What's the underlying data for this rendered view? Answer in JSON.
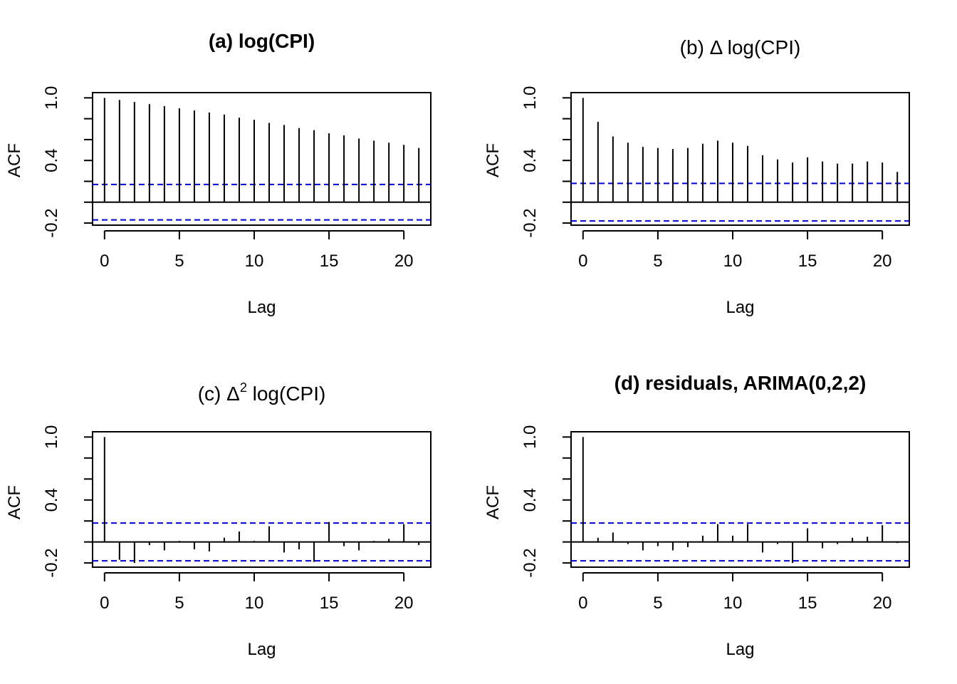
{
  "chart_data": [
    {
      "type": "acf",
      "title": "(a) log(CPI)",
      "title_bold": true,
      "xlabel": "Lag",
      "ylabel": "ACF",
      "xlim": [
        -0.8,
        21.8
      ],
      "ylim": [
        -0.22,
        1.05
      ],
      "xticks": [
        0,
        5,
        10,
        15,
        20
      ],
      "yticks": [
        -0.2,
        0.4,
        1.0
      ],
      "yticks_minor": [
        -0.2,
        0.0,
        0.2,
        0.4,
        0.6,
        0.8,
        1.0
      ],
      "ci": 0.17,
      "ci_color": "#0000cc",
      "lags": [
        0,
        1,
        2,
        3,
        4,
        5,
        6,
        7,
        8,
        9,
        10,
        11,
        12,
        13,
        14,
        15,
        16,
        17,
        18,
        19,
        20,
        21
      ],
      "values": [
        1.0,
        0.98,
        0.96,
        0.94,
        0.92,
        0.9,
        0.88,
        0.86,
        0.84,
        0.81,
        0.79,
        0.76,
        0.74,
        0.71,
        0.69,
        0.66,
        0.64,
        0.61,
        0.59,
        0.57,
        0.55,
        0.52
      ]
    },
    {
      "type": "acf",
      "title": "(b) Δ log(CPI)",
      "title_bold": false,
      "xlabel": "Lag",
      "ylabel": "ACF",
      "xlim": [
        -0.8,
        21.8
      ],
      "ylim": [
        -0.22,
        1.05
      ],
      "xticks": [
        0,
        5,
        10,
        15,
        20
      ],
      "yticks": [
        -0.2,
        0.4,
        1.0
      ],
      "yticks_minor": [
        -0.2,
        0.0,
        0.2,
        0.4,
        0.6,
        0.8,
        1.0
      ],
      "ci": 0.18,
      "ci_color": "#0000cc",
      "lags": [
        0,
        1,
        2,
        3,
        4,
        5,
        6,
        7,
        8,
        9,
        10,
        11,
        12,
        13,
        14,
        15,
        16,
        17,
        18,
        19,
        20,
        21
      ],
      "values": [
        1.0,
        0.77,
        0.63,
        0.57,
        0.53,
        0.52,
        0.51,
        0.52,
        0.56,
        0.59,
        0.57,
        0.54,
        0.45,
        0.41,
        0.38,
        0.43,
        0.39,
        0.37,
        0.37,
        0.39,
        0.38,
        0.29
      ]
    },
    {
      "type": "acf",
      "title_prefix": "(c) Δ",
      "title_sup": "2",
      "title_suffix": " log(CPI)",
      "title_bold": false,
      "xlabel": "Lag",
      "ylabel": "ACF",
      "xlim": [
        -0.8,
        21.8
      ],
      "ylim": [
        -0.24,
        1.05
      ],
      "xticks": [
        0,
        5,
        10,
        15,
        20
      ],
      "yticks": [
        -0.2,
        0.4,
        1.0
      ],
      "yticks_minor": [
        -0.2,
        0.0,
        0.2,
        0.4,
        0.6,
        0.8,
        1.0
      ],
      "ci": 0.18,
      "ci_color": "#0000cc",
      "lags": [
        0,
        1,
        2,
        3,
        4,
        5,
        6,
        7,
        8,
        9,
        10,
        11,
        12,
        13,
        14,
        15,
        16,
        17,
        18,
        19,
        20,
        21
      ],
      "values": [
        1.0,
        -0.17,
        -0.2,
        -0.03,
        -0.08,
        0.01,
        -0.07,
        -0.09,
        0.04,
        0.1,
        0.01,
        0.15,
        -0.1,
        -0.07,
        -0.19,
        0.19,
        -0.04,
        -0.08,
        0.01,
        0.03,
        0.17,
        -0.03
      ]
    },
    {
      "type": "acf",
      "title": "(d) residuals, ARIMA(0,2,2)",
      "title_bold": true,
      "xlabel": "Lag",
      "ylabel": "ACF",
      "xlim": [
        -0.8,
        21.8
      ],
      "ylim": [
        -0.24,
        1.05
      ],
      "xticks": [
        0,
        5,
        10,
        15,
        20
      ],
      "yticks": [
        -0.2,
        0.4,
        1.0
      ],
      "yticks_minor": [
        -0.2,
        0.0,
        0.2,
        0.4,
        0.6,
        0.8,
        1.0
      ],
      "ci": 0.18,
      "ci_color": "#0000cc",
      "lags": [
        0,
        1,
        2,
        3,
        4,
        5,
        6,
        7,
        8,
        9,
        10,
        11,
        12,
        13,
        14,
        15,
        16,
        17,
        18,
        19,
        20,
        21
      ],
      "values": [
        1.0,
        0.04,
        0.09,
        -0.02,
        -0.08,
        -0.04,
        -0.08,
        -0.05,
        0.06,
        0.17,
        0.06,
        0.17,
        -0.1,
        -0.02,
        -0.2,
        0.13,
        -0.06,
        -0.02,
        0.04,
        0.05,
        0.16,
        -0.01
      ]
    }
  ]
}
